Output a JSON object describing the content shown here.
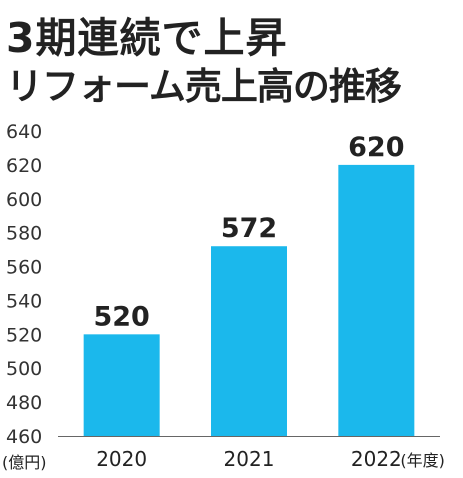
{
  "header": {
    "title_line1": "3期連続で上昇",
    "title_line2": "リフォーム売上高の推移"
  },
  "chart_data": {
    "type": "bar",
    "title": "3期連続で上昇 リフォーム売上高の推移",
    "categories": [
      "2020",
      "2021",
      "2022"
    ],
    "values": [
      520,
      572,
      620
    ],
    "data_labels": [
      "520",
      "572",
      "620"
    ],
    "ylim": [
      460,
      640
    ],
    "yticks": [
      460,
      480,
      500,
      520,
      540,
      560,
      580,
      600,
      620,
      640
    ],
    "ylabel": "(億円)",
    "xlabel_suffix": "(年度)",
    "grid": false,
    "bar_color": "#1bb8ec"
  }
}
